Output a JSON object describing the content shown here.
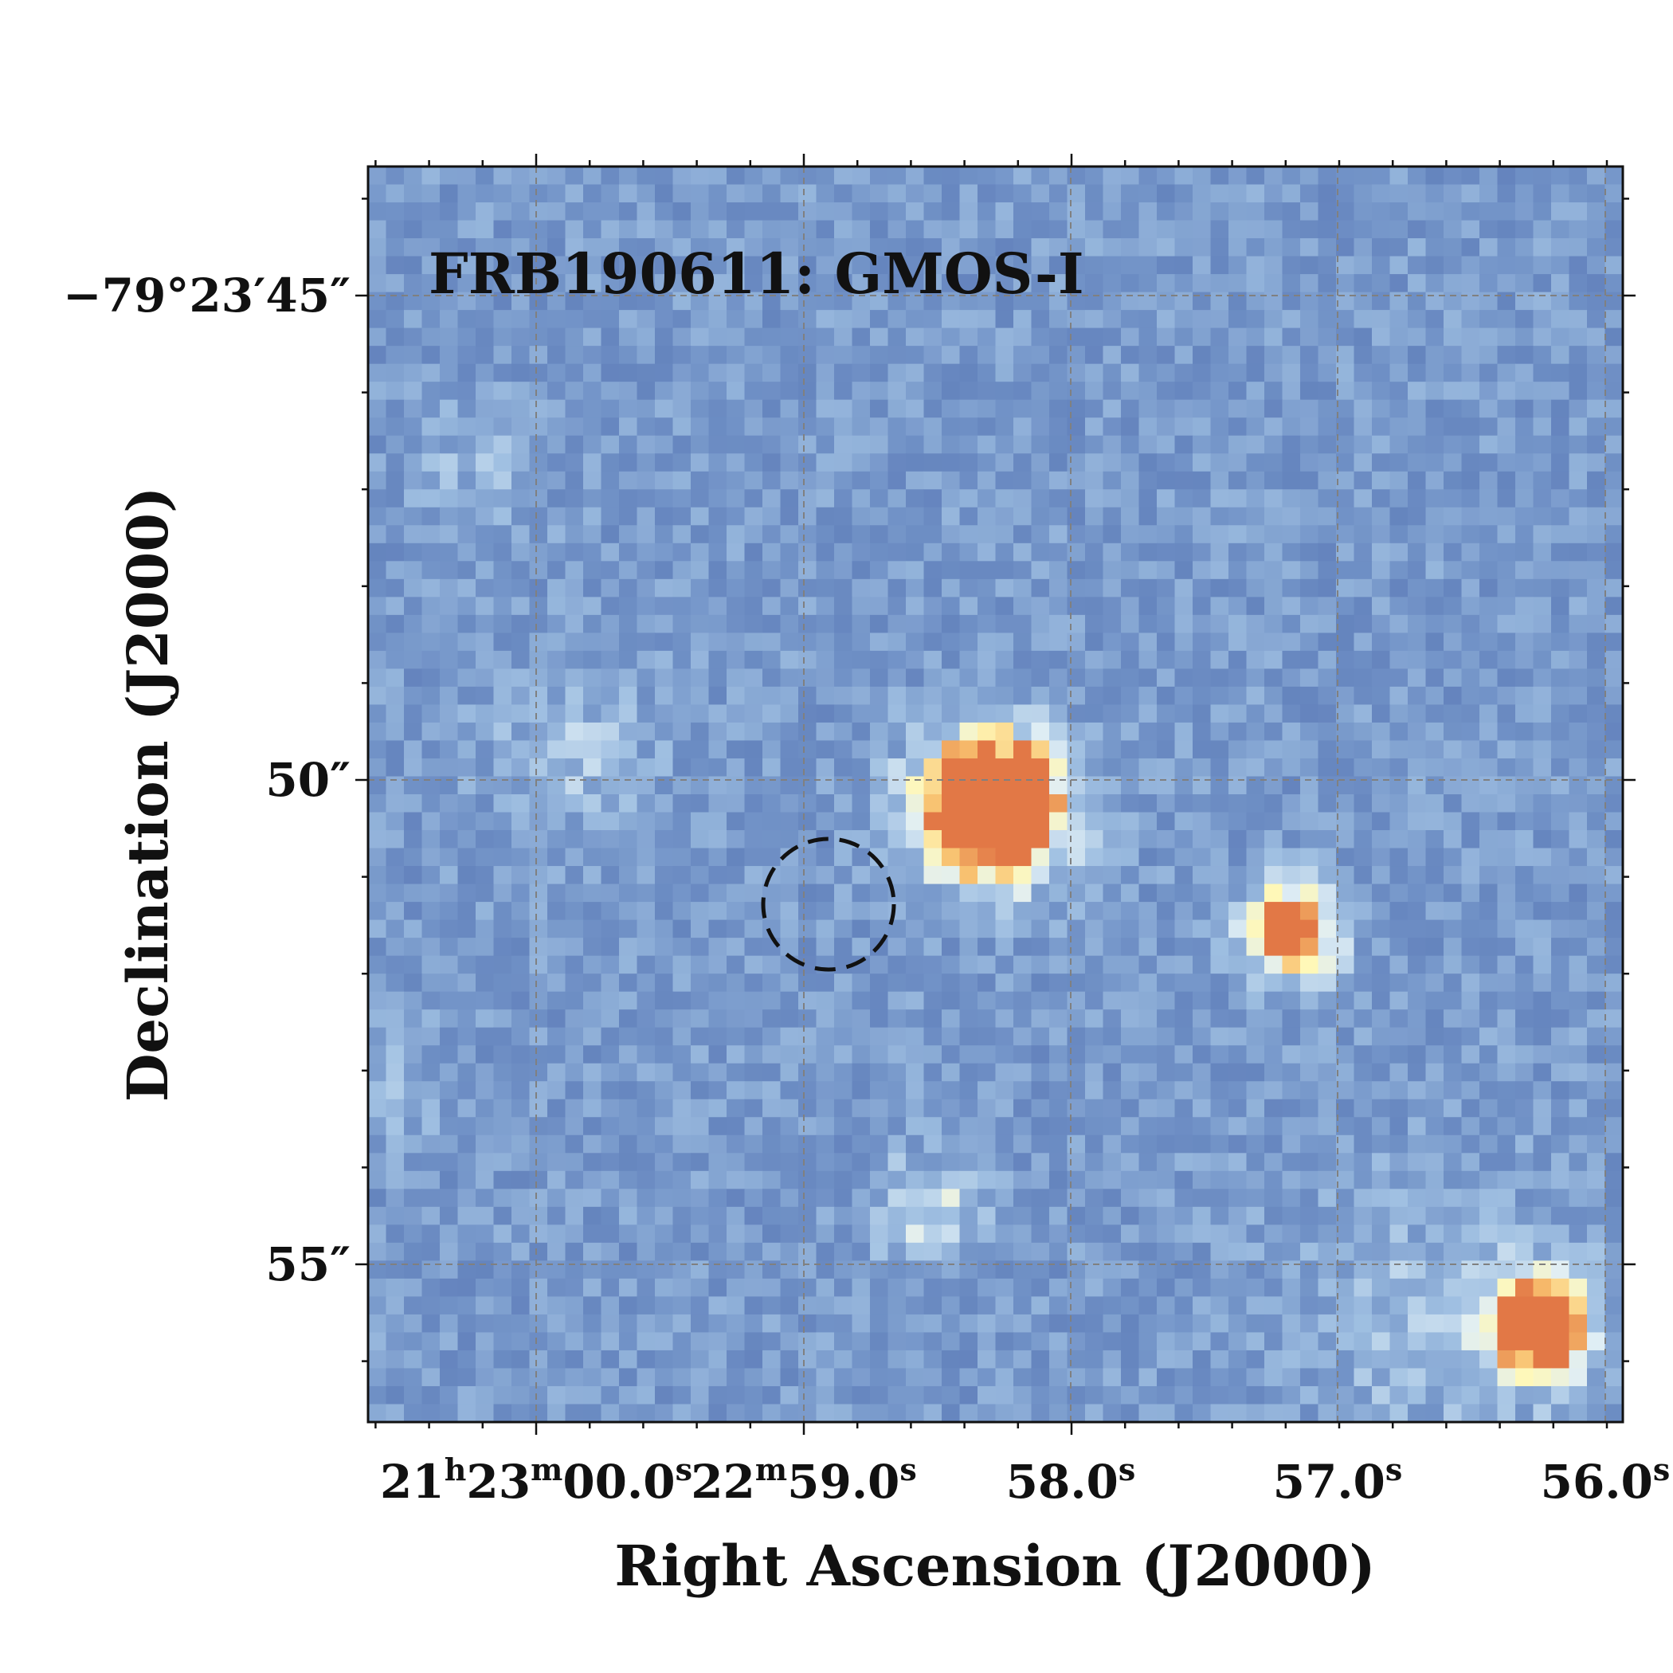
{
  "figure": {
    "panel_label": "FRB190611:  GMOS-I",
    "xlabel": "Right  Ascension  (J2000)",
    "ylabel": "Declination  (J2000)",
    "x_ticks": [
      {
        "label": "21h23m00.0s",
        "parts": [
          [
            "21",
            ""
          ],
          [
            "h",
            "sup"
          ],
          [
            "23",
            ""
          ],
          [
            "m",
            "sup"
          ],
          [
            "00.0",
            ""
          ],
          [
            "s",
            "sup"
          ]
        ]
      },
      {
        "label": "22m59.0s",
        "parts": [
          [
            "22",
            ""
          ],
          [
            "m",
            "sup"
          ],
          [
            "59.0",
            ""
          ],
          [
            "s",
            "sup"
          ]
        ]
      },
      {
        "label": "58.0s",
        "parts": [
          [
            "58.0",
            ""
          ],
          [
            "s",
            "sup"
          ]
        ]
      },
      {
        "label": "57.0s",
        "parts": [
          [
            "57.0",
            ""
          ],
          [
            "s",
            "sup"
          ]
        ]
      },
      {
        "label": "56.0s",
        "parts": [
          [
            "56.0",
            ""
          ],
          [
            "s",
            "sup"
          ]
        ]
      }
    ],
    "y_ticks": [
      {
        "label": "−79°23′45″"
      },
      {
        "label": "50″"
      },
      {
        "label": "55″"
      }
    ],
    "grid": true,
    "colormap": "RdYlBu_r",
    "colors": {
      "background_low": "#5e7fb8",
      "background_mid": "#8fb0d6",
      "source_core": "#e8864a",
      "source_halo": "#fff6b8",
      "grid": "#808080",
      "frb_circle": "#111111"
    },
    "frb_localization": {
      "shape": "circle",
      "style": "dashed"
    }
  }
}
